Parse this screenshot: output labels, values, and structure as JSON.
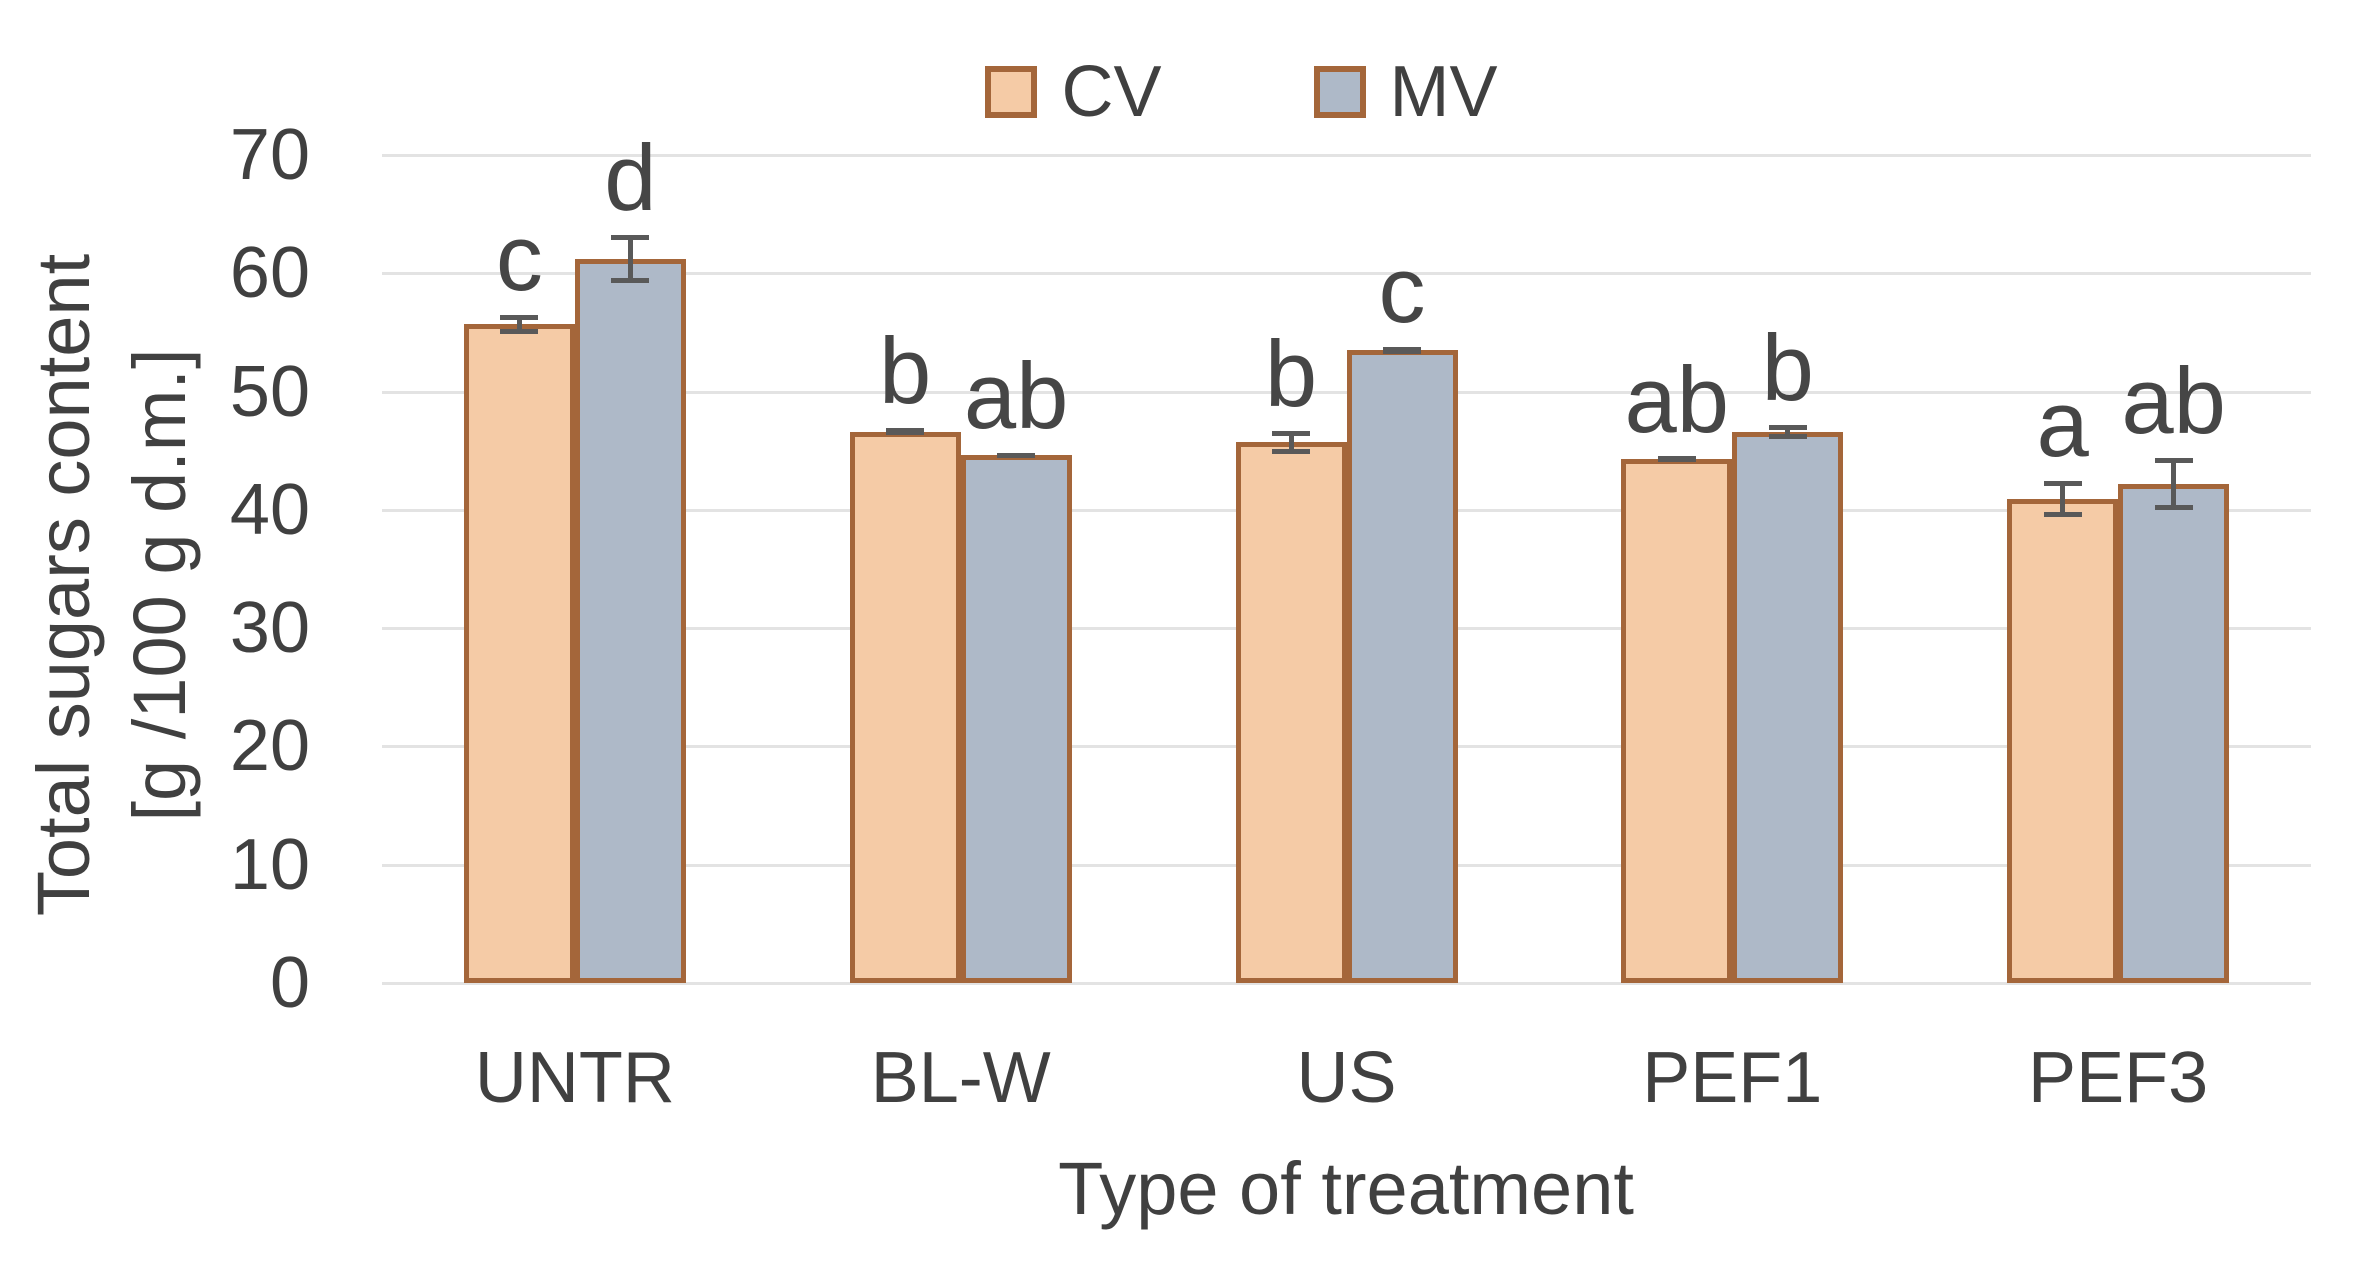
{
  "chart_data": {
    "type": "bar",
    "categories": [
      "UNTR",
      "BL-W",
      "US",
      "PEF1",
      "PEF3"
    ],
    "series": [
      {
        "name": "CV",
        "values": [
          55.7,
          46.6,
          45.7,
          44.3,
          40.9
        ],
        "error_bars": [
          0.8,
          0.3,
          1.0,
          0.2,
          1.5
        ],
        "significance_letters": [
          "c",
          "b",
          "b",
          "ab",
          "a"
        ],
        "fill": "#F5CBA6",
        "border": "#A4663A"
      },
      {
        "name": "MV",
        "values": [
          61.2,
          44.6,
          53.5,
          46.6,
          42.2
        ],
        "error_bars": [
          2.0,
          0.2,
          0.3,
          0.6,
          2.2
        ],
        "significance_letters": [
          "d",
          "ab",
          "c",
          "b",
          "ab"
        ],
        "fill": "#AEB9C8",
        "border": "#A4663A"
      }
    ],
    "xlabel": "Type of treatment",
    "ylabel_line1": "Total sugars content",
    "ylabel_line2": "[g /100 g d.m.]",
    "ylim": [
      0,
      70
    ],
    "yticks": [
      0,
      10,
      20,
      30,
      40,
      50,
      60,
      70
    ],
    "grid": true,
    "legend_position": "top",
    "colors": {
      "gridline": "#E3E3E3",
      "error_bar": "#595959",
      "text": "#404040"
    }
  }
}
